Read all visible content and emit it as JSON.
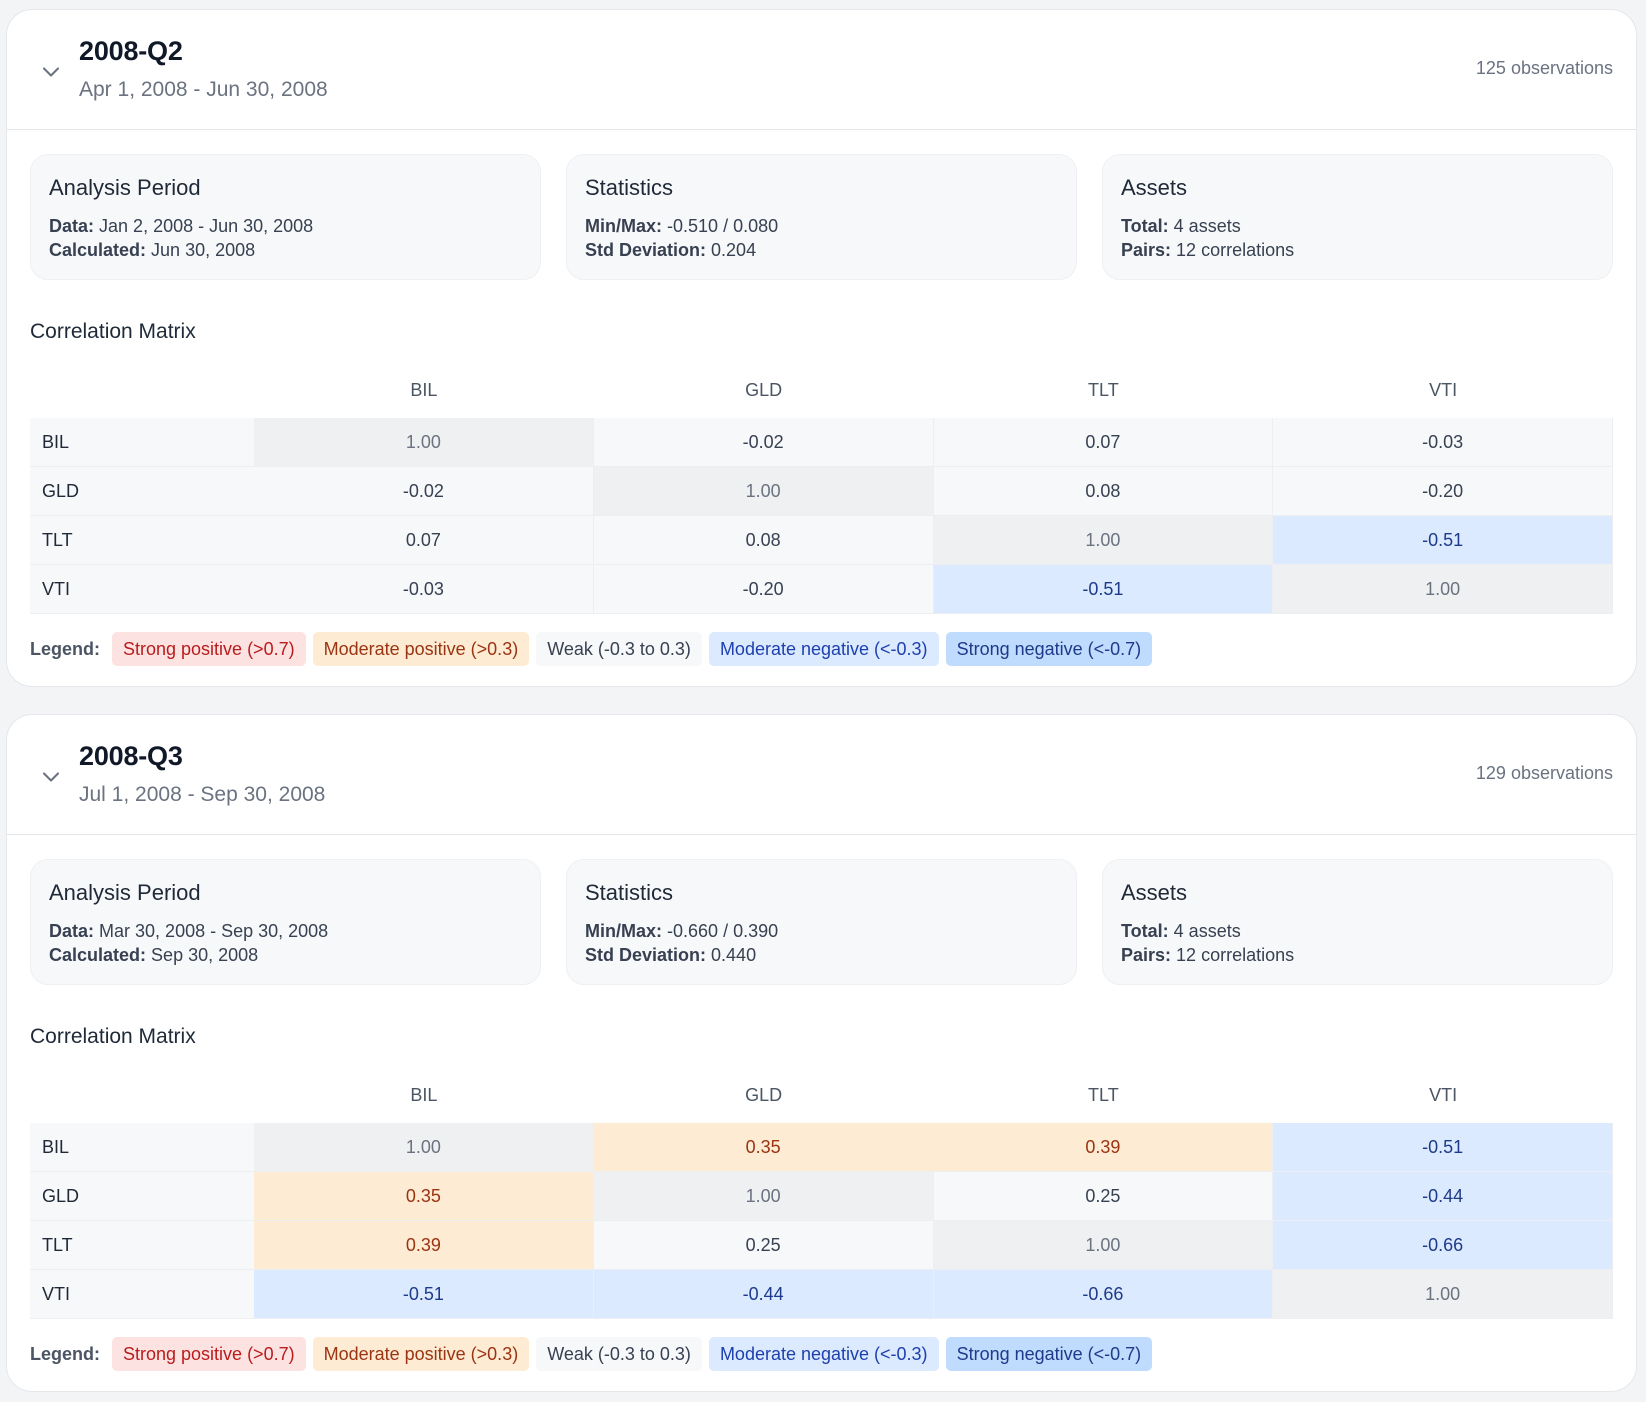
{
  "icons": {
    "collapse": "chevron-down-icon"
  },
  "colors": {
    "strong_positive": "#fde2e2",
    "moderate_positive": "#fdebd3",
    "weak": "#f7f8fa",
    "moderate_negative": "#dbeafe",
    "strong_negative": "#bfdbfe"
  },
  "labels": {
    "analysis_period": "Analysis Period",
    "data": "Data:",
    "calculated": "Calculated:",
    "statistics": "Statistics",
    "minmax": "Min/Max:",
    "std": "Std Deviation:",
    "assets": "Assets",
    "total": "Total:",
    "pairs": "Pairs:",
    "matrix_title": "Correlation Matrix",
    "legend": "Legend:"
  },
  "legend": [
    {
      "label": "Strong positive (>0.7)",
      "class": "strpos"
    },
    {
      "label": "Moderate positive (>0.3)",
      "class": "modpos"
    },
    {
      "label": "Weak (-0.3 to 0.3)",
      "class": "weak"
    },
    {
      "label": "Moderate negative (<-0.3)",
      "class": "modneg"
    },
    {
      "label": "Strong negative (<-0.7)",
      "class": "strneg"
    }
  ],
  "periods": [
    {
      "title": "2008-Q2",
      "range": "Apr 1, 2008 - Jun 30, 2008",
      "observations": "125 observations",
      "data_range": "Jan 2, 2008 - Jun 30, 2008",
      "calculated": "Jun 30, 2008",
      "minmax": "-0.510 / 0.080",
      "std": "0.204",
      "total_assets": "4 assets",
      "pairs": "12 correlations",
      "assets": [
        "BIL",
        "GLD",
        "TLT",
        "VTI"
      ],
      "matrix": [
        [
          "1.00",
          "-0.02",
          "0.07",
          "-0.03"
        ],
        [
          "-0.02",
          "1.00",
          "0.08",
          "-0.20"
        ],
        [
          "0.07",
          "0.08",
          "1.00",
          "-0.51"
        ],
        [
          "-0.03",
          "-0.20",
          "-0.51",
          "1.00"
        ]
      ]
    },
    {
      "title": "2008-Q3",
      "range": "Jul 1, 2008 - Sep 30, 2008",
      "observations": "129 observations",
      "data_range": "Mar 30, 2008 - Sep 30, 2008",
      "calculated": "Sep 30, 2008",
      "minmax": "-0.660 / 0.390",
      "std": "0.440",
      "total_assets": "4 assets",
      "pairs": "12 correlations",
      "assets": [
        "BIL",
        "GLD",
        "TLT",
        "VTI"
      ],
      "matrix": [
        [
          "1.00",
          "0.35",
          "0.39",
          "-0.51"
        ],
        [
          "0.35",
          "1.00",
          "0.25",
          "-0.44"
        ],
        [
          "0.39",
          "0.25",
          "1.00",
          "-0.66"
        ],
        [
          "-0.51",
          "-0.44",
          "-0.66",
          "1.00"
        ]
      ]
    }
  ]
}
